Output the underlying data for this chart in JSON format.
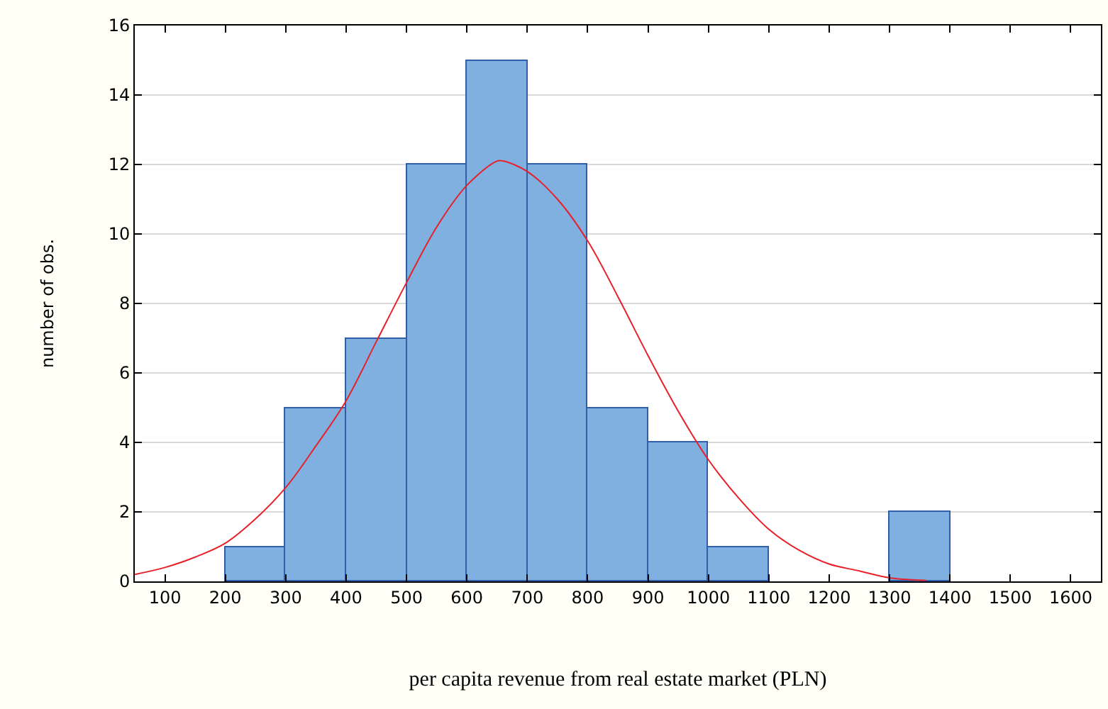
{
  "chart_data": {
    "type": "histogram",
    "xlabel": "per capita revenue from real estate market (PLN)",
    "ylabel": "number of obs.",
    "bins": [
      200,
      300,
      400,
      500,
      600,
      700,
      800,
      900,
      1000,
      1100,
      1200,
      1300,
      1400
    ],
    "values": [
      1,
      5,
      7,
      12,
      15,
      12,
      5,
      4,
      1,
      0,
      0,
      2
    ],
    "color": "#7fb0e0",
    "series": [
      {
        "type": "line",
        "color": "#e8202a",
        "x": [
          50,
          100,
          150,
          200,
          250,
          300,
          350,
          400,
          450,
          500,
          550,
          600,
          650,
          660,
          700,
          750,
          800,
          850,
          900,
          950,
          1000,
          1050,
          1100,
          1150,
          1200,
          1250,
          1300,
          1360
        ],
        "values": [
          0.2,
          0.4,
          0.7,
          1.1,
          1.8,
          2.7,
          3.9,
          5.2,
          6.9,
          8.6,
          10.2,
          11.4,
          12.1,
          12.1,
          11.8,
          11.0,
          9.8,
          8.2,
          6.5,
          4.9,
          3.5,
          2.4,
          1.5,
          0.9,
          0.5,
          0.3,
          0.1,
          0.03
        ]
      }
    ],
    "xlim": [
      50,
      1650
    ],
    "xticks": [
      100,
      200,
      300,
      400,
      500,
      600,
      700,
      800,
      900,
      1000,
      1100,
      1200,
      1300,
      1400,
      1500,
      1600
    ],
    "ylim": [
      0,
      16
    ],
    "yticks": [
      0,
      2,
      4,
      6,
      8,
      10,
      12,
      14,
      16
    ],
    "grid": "y"
  }
}
